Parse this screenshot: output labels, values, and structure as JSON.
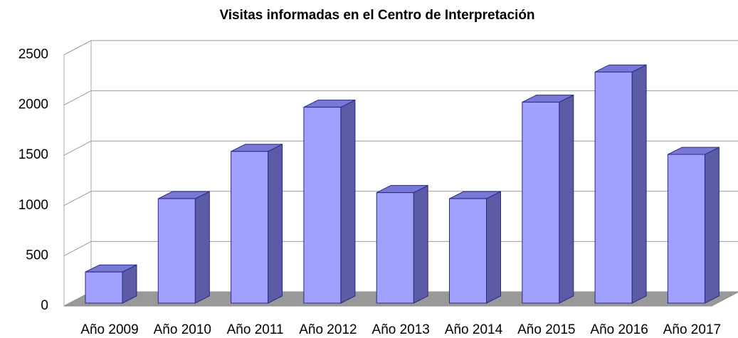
{
  "chart_data": {
    "type": "bar",
    "title": "Visitas informadas en el Centro de Interpretación",
    "categories": [
      "Año 2009",
      "Año 2010",
      "Año 2011",
      "Año 2012",
      "Año 2013",
      "Año 2014",
      "Año 2015",
      "Año 2016",
      "Año 2017"
    ],
    "values": [
      310,
      1040,
      1510,
      1950,
      1100,
      1040,
      2000,
      2300,
      1480
    ],
    "color": "#a0a0ff",
    "ylim": [
      0,
      2500
    ],
    "yticks": [
      0,
      500,
      1000,
      1500,
      2000,
      2500
    ],
    "grid": true
  }
}
